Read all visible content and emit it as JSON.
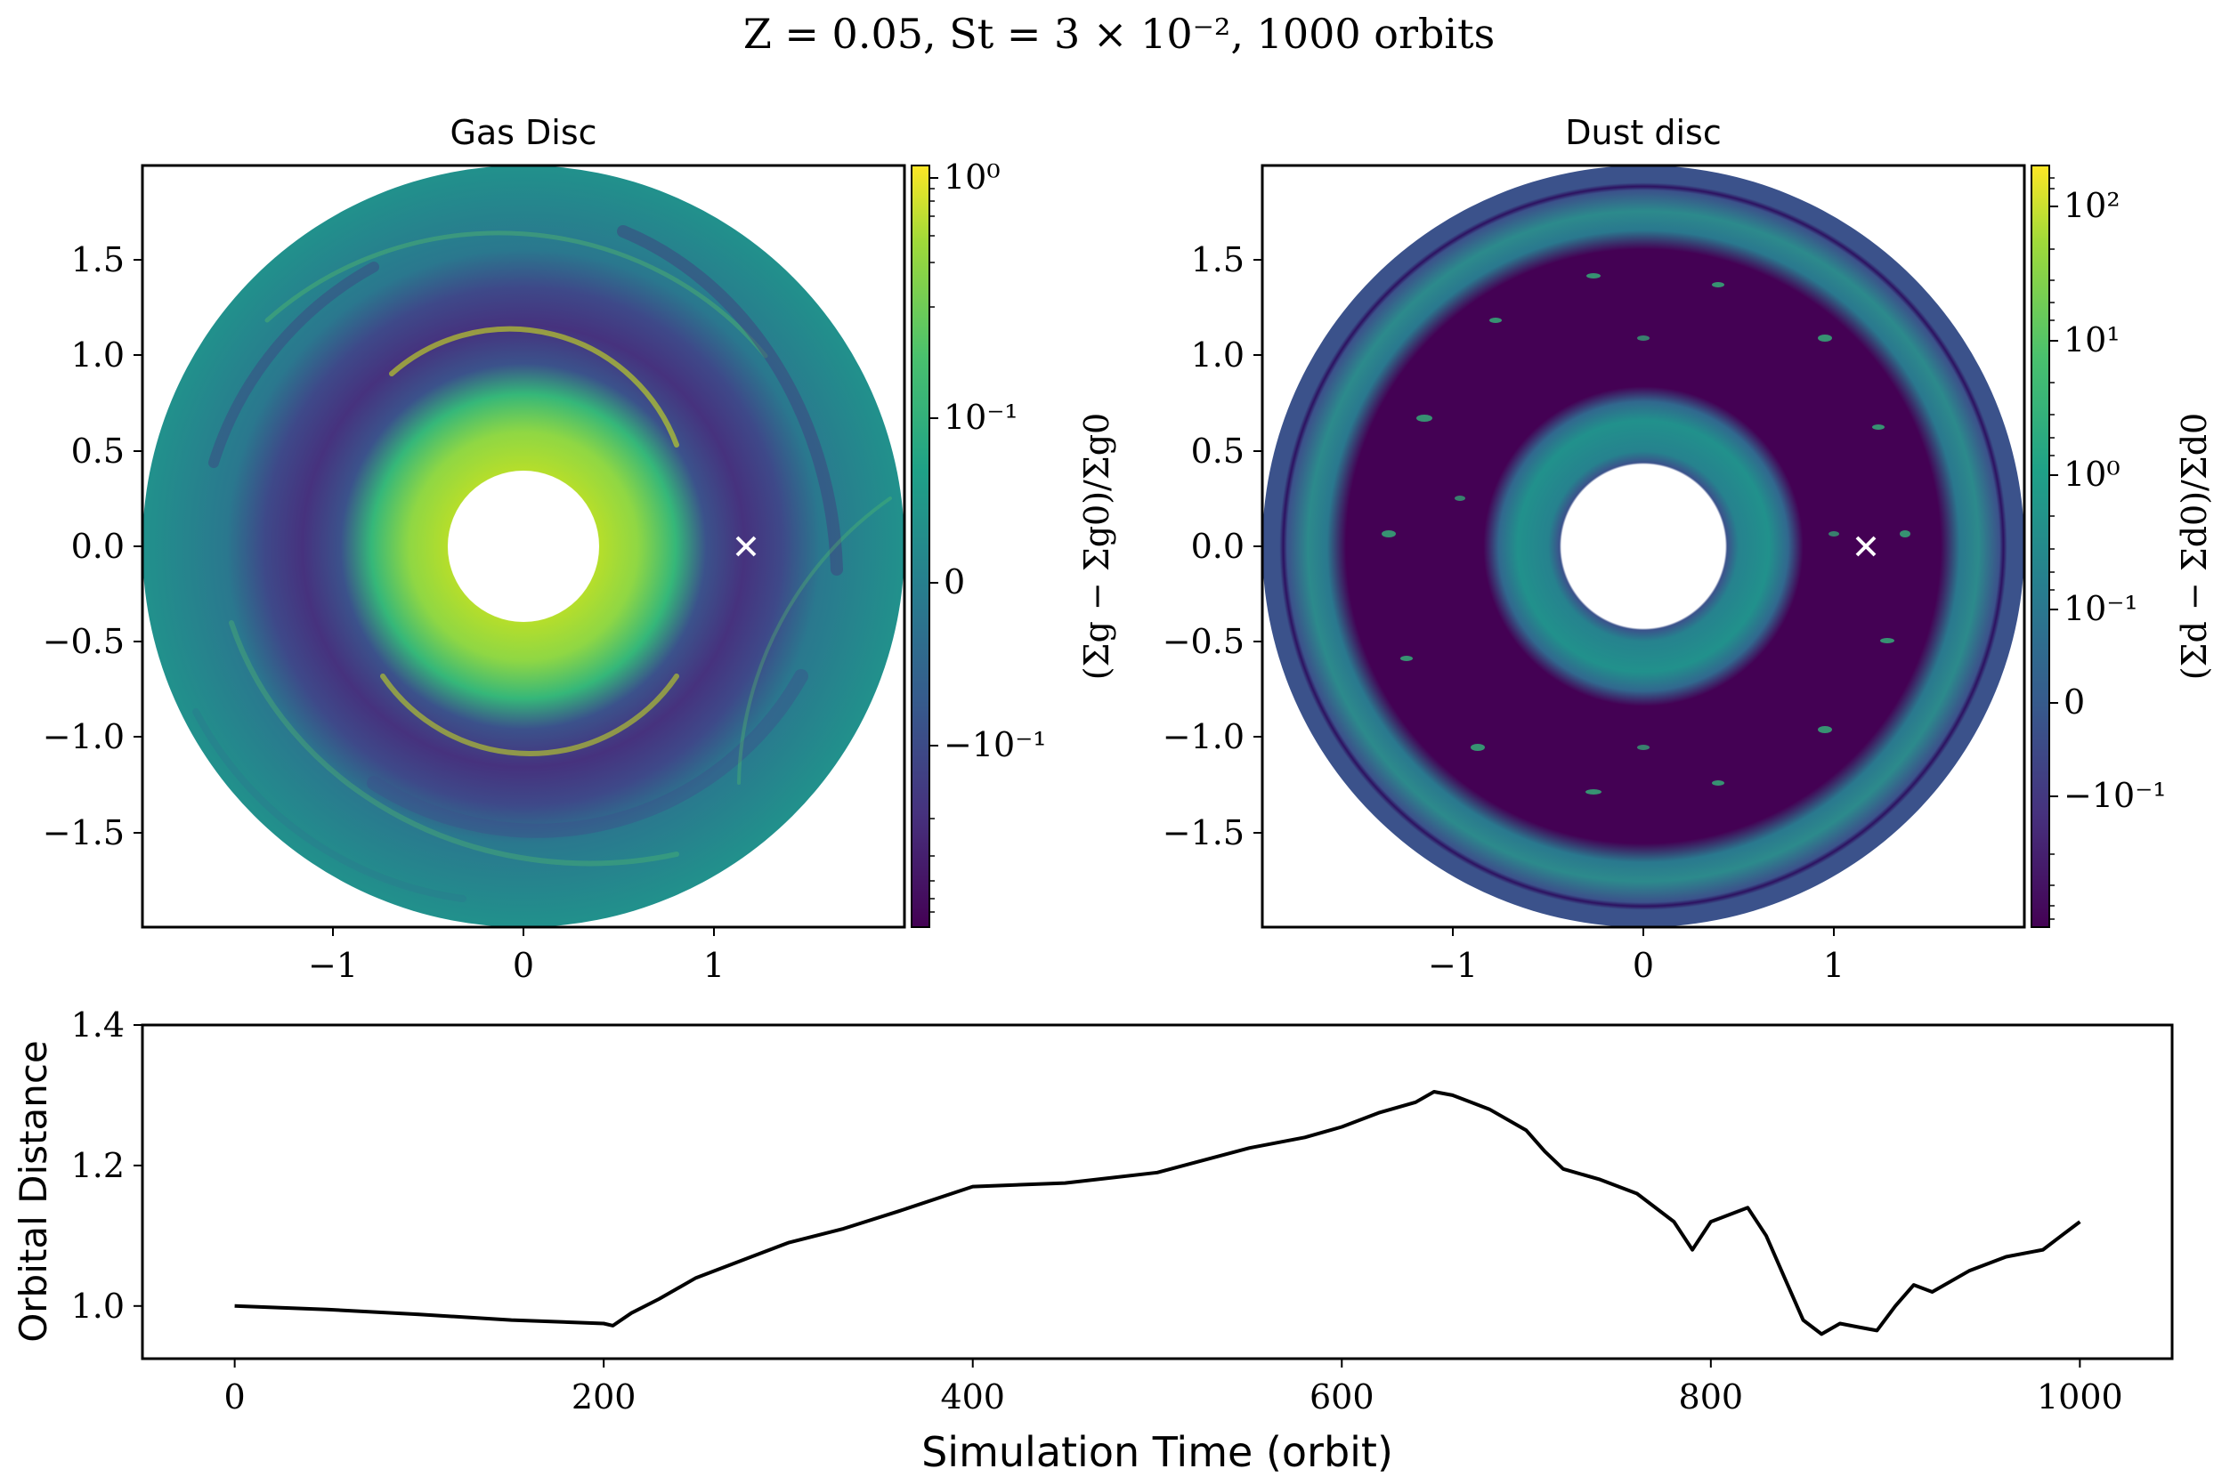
{
  "figure": {
    "title": "Z = 0.05, St = 3 × 10⁻², 1000 orbits"
  },
  "chart_data": [
    {
      "type": "heatmap",
      "title": "Gas Disc",
      "xlabel": "",
      "ylabel": "",
      "x_ticks": [
        "−1",
        "0",
        "1"
      ],
      "y_ticks": [
        "1.5",
        "1.0",
        "0.5",
        "0.0",
        "−0.5",
        "−1.0",
        "−1.5"
      ],
      "xlim": [
        -2,
        2
      ],
      "ylim": [
        -2,
        2
      ],
      "colorbar": {
        "label": "(Σg − Σg0)/Σg0",
        "scale": "symlog",
        "colormap": "viridis",
        "ticks": [
          "10⁰",
          "10⁻¹",
          "0",
          "−10⁻¹"
        ]
      },
      "marker": {
        "symbol": "×",
        "x": 1.2,
        "y": 0.0,
        "color": "#ffffff"
      },
      "disc": {
        "inner_radius": 0.4,
        "outer_radius": 2.0
      }
    },
    {
      "type": "heatmap",
      "title": "Dust disc",
      "xlabel": "",
      "ylabel": "",
      "x_ticks": [
        "−1",
        "0",
        "1"
      ],
      "y_ticks": [
        "1.5",
        "1.0",
        "0.5",
        "0.0",
        "−0.5",
        "−1.0",
        "−1.5"
      ],
      "xlim": [
        -2,
        2
      ],
      "ylim": [
        -2,
        2
      ],
      "colorbar": {
        "label": "(Σd − Σd0)/Σd0",
        "scale": "symlog",
        "colormap": "viridis",
        "ticks": [
          "10²",
          "10¹",
          "10⁰",
          "10⁻¹",
          "0",
          "−10⁻¹"
        ]
      },
      "marker": {
        "symbol": "×",
        "x": 1.2,
        "y": 0.0,
        "color": "#ffffff"
      },
      "disc": {
        "inner_radius": 0.4,
        "outer_radius": 2.0
      }
    },
    {
      "type": "line",
      "title": "",
      "xlabel": "Simulation Time (orbit)",
      "ylabel": "Orbital Distance",
      "xlim": [
        -50,
        1050
      ],
      "ylim": [
        0.925,
        1.4
      ],
      "x_ticks": [
        "0",
        "200",
        "400",
        "600",
        "800",
        "1000"
      ],
      "y_ticks": [
        "1.0",
        "1.2",
        "1.4"
      ],
      "grid": false,
      "series": [
        {
          "color": "#000000",
          "x": [
            0,
            50,
            100,
            150,
            200,
            205,
            215,
            230,
            250,
            280,
            300,
            330,
            360,
            400,
            450,
            500,
            550,
            580,
            600,
            620,
            640,
            650,
            660,
            680,
            700,
            710,
            720,
            740,
            760,
            780,
            790,
            800,
            820,
            830,
            840,
            850,
            860,
            870,
            880,
            890,
            900,
            910,
            920,
            940,
            960,
            980,
            990,
            1000
          ],
          "y": [
            1.0,
            0.995,
            0.988,
            0.98,
            0.975,
            0.972,
            0.99,
            1.01,
            1.04,
            1.07,
            1.09,
            1.11,
            1.135,
            1.17,
            1.175,
            1.19,
            1.225,
            1.24,
            1.255,
            1.275,
            1.29,
            1.305,
            1.3,
            1.28,
            1.25,
            1.22,
            1.195,
            1.18,
            1.16,
            1.12,
            1.08,
            1.12,
            1.14,
            1.1,
            1.04,
            0.98,
            0.96,
            0.975,
            0.97,
            0.965,
            1.0,
            1.03,
            1.02,
            1.05,
            1.07,
            1.08,
            1.1,
            1.12
          ]
        }
      ]
    }
  ]
}
